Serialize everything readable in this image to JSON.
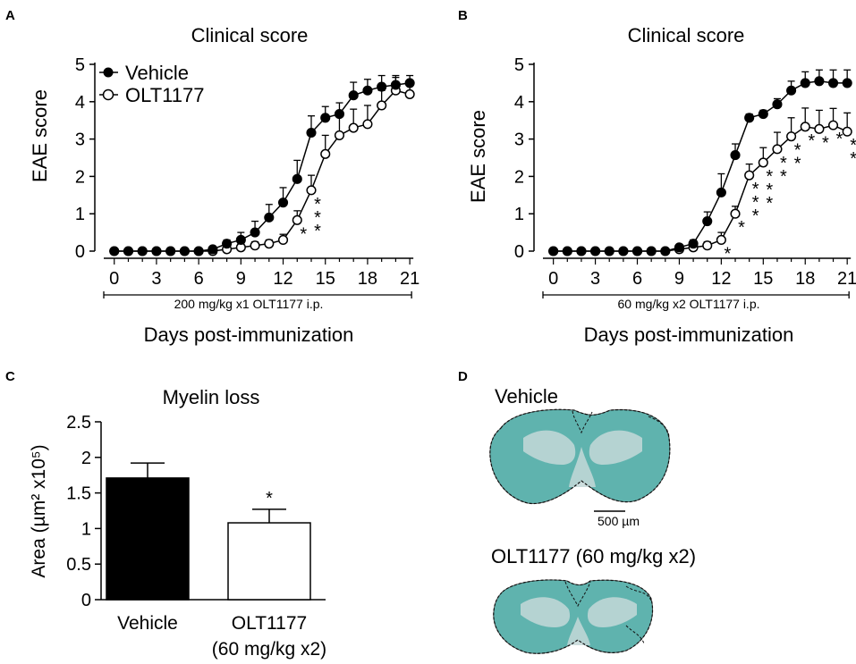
{
  "panels": [
    {
      "id": "A",
      "letter": "A"
    },
    {
      "id": "B",
      "letter": "B"
    },
    {
      "id": "C",
      "letter": "C"
    },
    {
      "id": "D",
      "letter": "D"
    }
  ],
  "colors": {
    "tissue_stain": "#5fb3ae",
    "tissue_pale": "#c4d8d8",
    "axis": "#000000"
  },
  "chart_data": [
    {
      "panel": "A",
      "type": "line",
      "title": "Clinical score",
      "xlabel": "Days post-immunization",
      "ylabel": "EAE score",
      "xlim": [
        -1,
        21.5
      ],
      "ylim": [
        0,
        5
      ],
      "xticks": [
        0,
        3,
        6,
        9,
        12,
        15,
        18,
        21
      ],
      "yticks": [
        0,
        1,
        2,
        3,
        4,
        5
      ],
      "treatment_bar_label": "200 mg/kg x1 OLT1177 i.p.",
      "legend": {
        "position": "top-left",
        "entries": [
          "Vehicle",
          "OLT1177"
        ]
      },
      "x": [
        0,
        1,
        2,
        3,
        4,
        5,
        6,
        7,
        8,
        9,
        10,
        11,
        12,
        13,
        14,
        15,
        16,
        17,
        18,
        19,
        20,
        21
      ],
      "series": [
        {
          "name": "Vehicle",
          "marker": "filled-circle",
          "values": [
            0,
            0,
            0,
            0,
            0,
            0,
            0,
            0.05,
            0.2,
            0.3,
            0.5,
            0.9,
            1.3,
            1.93,
            3.17,
            3.57,
            3.67,
            4.17,
            4.3,
            4.4,
            4.45,
            4.5
          ],
          "errors": [
            0,
            0,
            0,
            0,
            0,
            0,
            0,
            0.05,
            0.1,
            0.2,
            0.3,
            0.35,
            0.4,
            0.5,
            0.45,
            0.3,
            0.3,
            0.35,
            0.3,
            0.3,
            0.25,
            0.2
          ]
        },
        {
          "name": "OLT1177",
          "marker": "open-circle",
          "values": [
            0,
            0,
            0,
            0,
            0,
            0,
            0,
            0,
            0.05,
            0.1,
            0.15,
            0.2,
            0.3,
            0.83,
            1.63,
            2.6,
            3.1,
            3.3,
            3.4,
            3.9,
            4.3,
            4.2
          ],
          "errors": [
            0,
            0,
            0,
            0,
            0,
            0,
            0,
            0,
            0.05,
            0.1,
            0.1,
            0.1,
            0.15,
            0.25,
            0.4,
            0.5,
            0.55,
            0.5,
            0.5,
            0.4,
            0.35,
            0.35
          ]
        }
      ],
      "annotations": [
        {
          "x": 13,
          "text": "*"
        },
        {
          "x": 14,
          "text": "* * *"
        }
      ]
    },
    {
      "panel": "B",
      "type": "line",
      "title": "Clinical score",
      "xlabel": "Days post-immunization",
      "ylabel": "EAE score",
      "xlim": [
        -1,
        21.5
      ],
      "ylim": [
        0,
        5
      ],
      "xticks": [
        0,
        3,
        6,
        9,
        12,
        15,
        18,
        21
      ],
      "yticks": [
        0,
        1,
        2,
        3,
        4,
        5
      ],
      "treatment_bar_label": "60 mg/kg x2 OLT1177 i.p.",
      "x": [
        0,
        1,
        2,
        3,
        4,
        5,
        6,
        7,
        8,
        9,
        10,
        11,
        12,
        13,
        14,
        15,
        16,
        17,
        18,
        19,
        20,
        21
      ],
      "series": [
        {
          "name": "Vehicle",
          "marker": "filled-circle",
          "values": [
            0,
            0,
            0,
            0,
            0,
            0,
            0,
            0,
            0,
            0.1,
            0.2,
            0.8,
            1.57,
            2.57,
            3.57,
            3.67,
            3.93,
            4.3,
            4.5,
            4.55,
            4.5,
            4.5
          ],
          "errors": [
            0,
            0,
            0,
            0,
            0,
            0,
            0,
            0,
            0,
            0.05,
            0.1,
            0.25,
            0.5,
            0.3,
            0.1,
            0.1,
            0.15,
            0.25,
            0.3,
            0.3,
            0.35,
            0.35
          ]
        },
        {
          "name": "OLT1177",
          "marker": "open-circle",
          "values": [
            0,
            0,
            0,
            0,
            0,
            0,
            0,
            0,
            0,
            0.05,
            0.1,
            0.15,
            0.3,
            1.0,
            2.03,
            2.37,
            2.73,
            3.07,
            3.33,
            3.27,
            3.37,
            3.2
          ],
          "errors": [
            0,
            0,
            0,
            0,
            0,
            0,
            0,
            0,
            0,
            0.05,
            0.05,
            0.1,
            0.2,
            0.2,
            0.3,
            0.4,
            0.45,
            0.5,
            0.5,
            0.5,
            0.45,
            0.5
          ]
        }
      ],
      "annotations": [
        {
          "x": 12,
          "text": "*"
        },
        {
          "x": 13,
          "text": "*"
        },
        {
          "x": 14,
          "text": "* * *"
        },
        {
          "x": 15,
          "text": "* * *"
        },
        {
          "x": 16,
          "text": "* *"
        },
        {
          "x": 17,
          "text": "* *"
        },
        {
          "x": 18,
          "text": "*"
        },
        {
          "x": 19,
          "text": "*"
        },
        {
          "x": 20,
          "text": "*"
        },
        {
          "x": 21,
          "text": "* *"
        }
      ]
    },
    {
      "panel": "C",
      "type": "bar",
      "title": "Myelin loss",
      "ylabel": "Area (µm² x10⁵)",
      "ylim": [
        0,
        2.5
      ],
      "yticks": [
        0,
        0.5,
        1,
        1.5,
        2,
        2.5
      ],
      "ytick_labels": [
        "0",
        "0.5",
        "1",
        "1.5",
        "2",
        "2.5"
      ],
      "categories": [
        "Vehicle",
        "OLT1177 (60 mg/kg x2)"
      ],
      "category_lines": [
        [
          "Vehicle"
        ],
        [
          "OLT1177",
          "(60 mg/kg x2)"
        ]
      ],
      "values": [
        1.71,
        1.08
      ],
      "errors": [
        0.21,
        0.19
      ],
      "fills": [
        "#000000",
        "#ffffff"
      ],
      "annotations": [
        {
          "category": 1,
          "text": "*"
        }
      ]
    }
  ],
  "histology": {
    "vehicle_label": "Vehicle",
    "olt_label": "OLT1177 (60 mg/kg x2)",
    "scale_bar_label": "500 µm"
  }
}
